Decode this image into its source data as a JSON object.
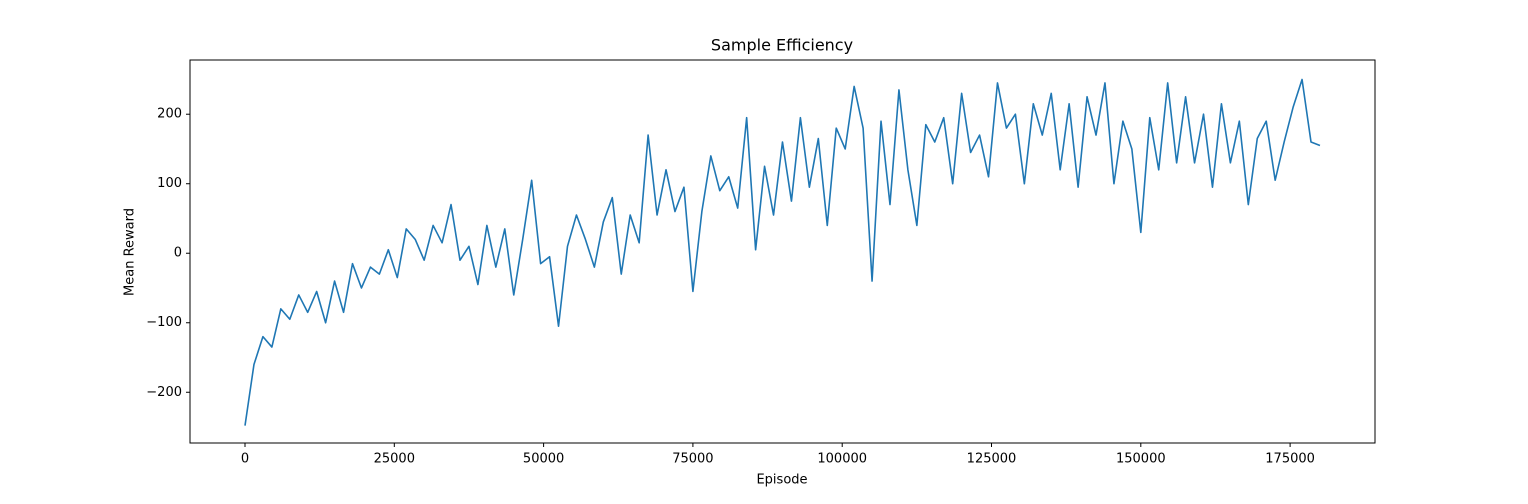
{
  "chart_data": {
    "type": "line",
    "title": "Sample Efficiency",
    "xlabel": "Episode",
    "ylabel": "Mean Reward",
    "x": [
      0,
      1500,
      3000,
      4500,
      6000,
      7500,
      9000,
      10500,
      12000,
      13500,
      15000,
      16500,
      18000,
      19500,
      21000,
      22500,
      24000,
      25500,
      27000,
      28500,
      30000,
      31500,
      33000,
      34500,
      36000,
      37500,
      39000,
      40500,
      42000,
      43500,
      45000,
      46500,
      48000,
      49500,
      51000,
      52500,
      54000,
      55500,
      57000,
      58500,
      60000,
      61500,
      63000,
      64500,
      66000,
      67500,
      69000,
      70500,
      72000,
      73500,
      75000,
      76500,
      78000,
      79500,
      81000,
      82500,
      84000,
      85500,
      87000,
      88500,
      90000,
      91500,
      93000,
      94500,
      96000,
      97500,
      99000,
      100500,
      102000,
      103500,
      105000,
      106500,
      108000,
      109500,
      111000,
      112500,
      114000,
      115500,
      117000,
      118500,
      120000,
      121500,
      123000,
      124500,
      126000,
      127500,
      129000,
      130500,
      132000,
      133500,
      135000,
      136500,
      138000,
      139500,
      141000,
      142500,
      144000,
      145500,
      147000,
      148500,
      150000,
      151500,
      153000,
      154500,
      156000,
      157500,
      159000,
      160500,
      162000,
      163500,
      165000,
      166500,
      168000,
      169500,
      171000,
      172500,
      174000,
      175500,
      177000,
      178500,
      180000
    ],
    "series": [
      {
        "name": "Mean Reward",
        "color": "#1f77b4",
        "values": [
          -248,
          -160,
          -120,
          -135,
          -80,
          -95,
          -60,
          -85,
          -55,
          -100,
          -40,
          -85,
          -15,
          -50,
          -20,
          -30,
          5,
          -35,
          35,
          20,
          -10,
          40,
          15,
          70,
          -10,
          10,
          -45,
          40,
          -20,
          35,
          -60,
          20,
          105,
          -15,
          -5,
          -105,
          10,
          55,
          20,
          -20,
          45,
          80,
          -30,
          55,
          15,
          170,
          55,
          120,
          60,
          95,
          -55,
          60,
          140,
          90,
          110,
          65,
          195,
          5,
          125,
          55,
          160,
          75,
          195,
          95,
          165,
          40,
          180,
          150,
          240,
          180,
          -40,
          190,
          70,
          235,
          120,
          40,
          185,
          160,
          195,
          100,
          230,
          145,
          170,
          110,
          245,
          180,
          200,
          100,
          215,
          170,
          230,
          120,
          215,
          95,
          225,
          170,
          245,
          100,
          190,
          150,
          30,
          195,
          120,
          245,
          130,
          225,
          130,
          200,
          95,
          215,
          130,
          190,
          70,
          165,
          190,
          105,
          160,
          210,
          250,
          160,
          155
        ]
      }
    ],
    "xlim": [
      -9210,
      189215
    ],
    "ylim": [
      -273,
      278
    ],
    "xticks": [
      0,
      25000,
      50000,
      75000,
      100000,
      125000,
      150000,
      175000
    ],
    "yticks": [
      {
        "value": -200,
        "label": "−200"
      },
      {
        "value": -100,
        "label": "−100"
      },
      0,
      100,
      200
    ]
  }
}
